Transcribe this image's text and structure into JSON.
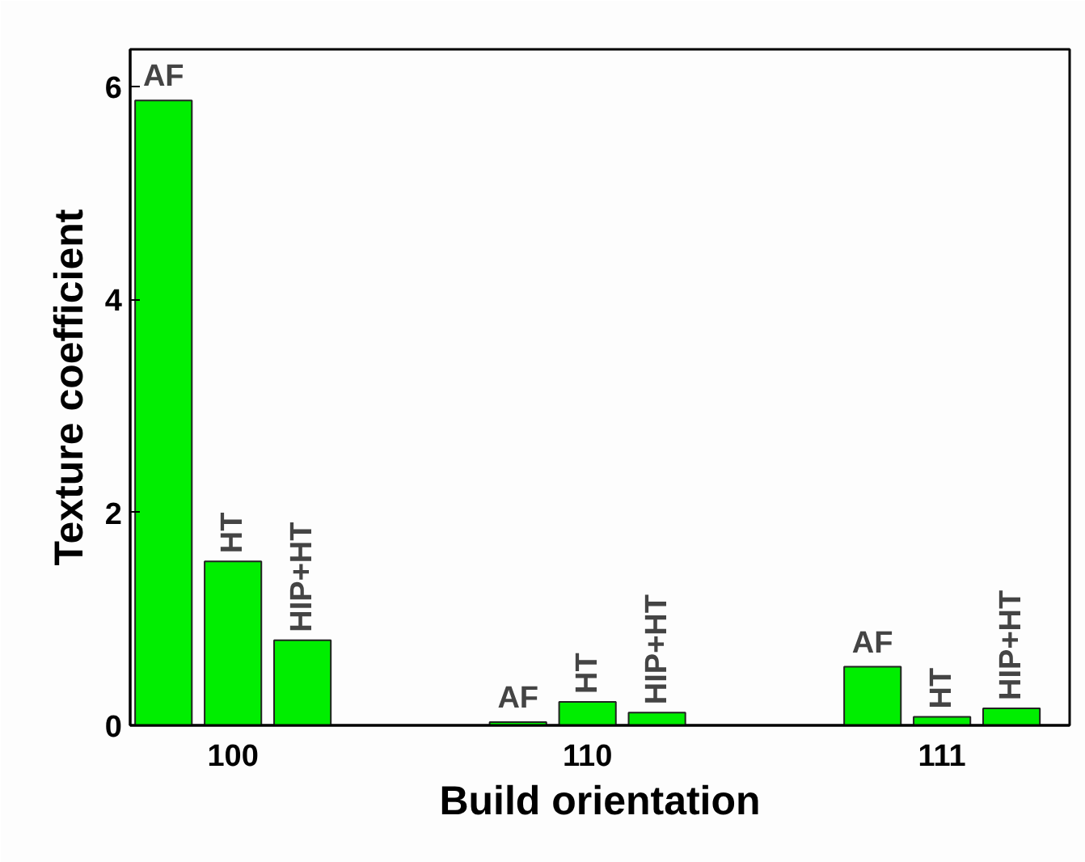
{
  "chart_data": {
    "type": "bar",
    "xlabel": "Build orientation",
    "ylabel": "Texture coefficient",
    "categories": [
      "100",
      "110",
      "111"
    ],
    "series": [
      {
        "name": "AF",
        "color": "#00ee00",
        "values": [
          5.87,
          0.03,
          0.55
        ]
      },
      {
        "name": "HT",
        "color": "#00ee00",
        "values": [
          1.54,
          0.22,
          0.08
        ]
      },
      {
        "name": "HIP+HT",
        "color": "#00ee00",
        "values": [
          0.8,
          0.12,
          0.16
        ]
      }
    ],
    "ylim": [
      0,
      6.35
    ],
    "yticks": [
      0,
      2,
      4,
      6
    ]
  }
}
